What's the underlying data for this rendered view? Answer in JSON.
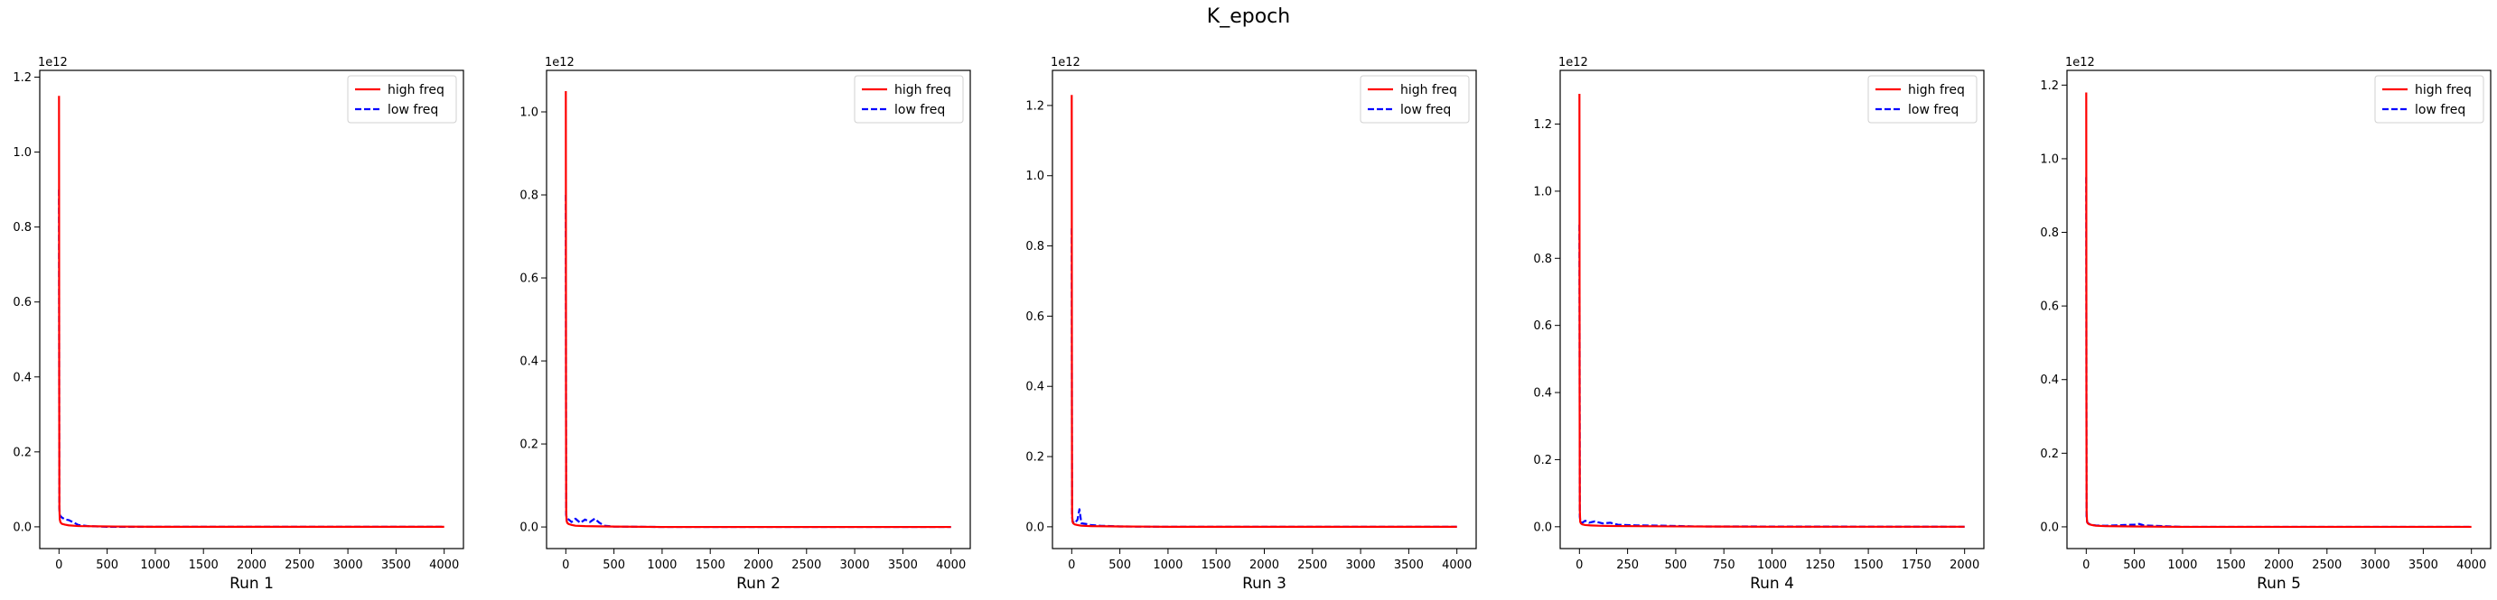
{
  "figure": {
    "title": "K_epoch"
  },
  "chart_data": [
    {
      "type": "line",
      "title": "",
      "xlabel": "Run 1",
      "ylabel": "",
      "xlim": [
        -200,
        4200
      ],
      "ylim": [
        -0.058,
        1.218
      ],
      "xticks": [
        0,
        500,
        1000,
        1500,
        2000,
        2500,
        3000,
        3500,
        4000
      ],
      "xtick_labels": [
        "0",
        "500",
        "1000",
        "1500",
        "2000",
        "2500",
        "3000",
        "3500",
        "4000"
      ],
      "yticks": [
        0.0,
        0.2,
        0.4,
        0.6,
        0.8,
        1.0,
        1.2
      ],
      "ytick_labels": [
        "0.0",
        "0.2",
        "0.4",
        "0.6",
        "0.8",
        "1.0",
        "1.2"
      ],
      "y_offset_label": "1e12",
      "legend": {
        "placement": "top-right",
        "entries": [
          "high freq",
          "low freq"
        ]
      },
      "grid": false,
      "series": [
        {
          "name": "high freq",
          "color": "#ff0000",
          "style": "solid",
          "x": [
            0,
            2,
            4,
            8,
            15,
            30,
            60,
            100,
            200,
            500,
            1000,
            2000,
            3000,
            4000
          ],
          "y": [
            1.15,
            0.4,
            0.05,
            0.02,
            0.012,
            0.008,
            0.006,
            0.004,
            0.002,
            0.001,
            0.0,
            0.0,
            0.0,
            0.0
          ]
        },
        {
          "name": "low freq",
          "color": "#0000ff",
          "style": "dashed",
          "x": [
            0,
            3,
            10,
            30,
            60,
            100,
            150,
            200,
            300,
            500,
            1000,
            4000
          ],
          "y": [
            0.9,
            0.05,
            0.03,
            0.025,
            0.02,
            0.018,
            0.012,
            0.005,
            0.002,
            0.0,
            0.0,
            0.0
          ]
        }
      ]
    },
    {
      "type": "line",
      "title": "",
      "xlabel": "Run 2",
      "ylabel": "",
      "xlim": [
        -200,
        4200
      ],
      "ylim": [
        -0.052,
        1.1
      ],
      "xticks": [
        0,
        500,
        1000,
        1500,
        2000,
        2500,
        3000,
        3500,
        4000
      ],
      "xtick_labels": [
        "0",
        "500",
        "1000",
        "1500",
        "2000",
        "2500",
        "3000",
        "3500",
        "4000"
      ],
      "yticks": [
        0.0,
        0.2,
        0.4,
        0.6,
        0.8,
        1.0
      ],
      "ytick_labels": [
        "0.0",
        "0.2",
        "0.4",
        "0.6",
        "0.8",
        "1.0"
      ],
      "y_offset_label": "1e12",
      "legend": {
        "placement": "top-right",
        "entries": [
          "high freq",
          "low freq"
        ]
      },
      "grid": false,
      "series": [
        {
          "name": "high freq",
          "color": "#ff0000",
          "style": "solid",
          "x": [
            0,
            2,
            4,
            8,
            15,
            30,
            60,
            100,
            200,
            500,
            1000,
            2000,
            3000,
            4000
          ],
          "y": [
            1.05,
            0.3,
            0.04,
            0.015,
            0.01,
            0.007,
            0.005,
            0.003,
            0.002,
            0.001,
            0.0,
            0.0,
            0.0,
            0.0
          ]
        },
        {
          "name": "low freq",
          "color": "#0000ff",
          "style": "dashed",
          "x": [
            0,
            3,
            10,
            30,
            60,
            100,
            150,
            200,
            250,
            300,
            350,
            400,
            500,
            1000,
            4000
          ],
          "y": [
            0.8,
            0.03,
            0.02,
            0.018,
            0.012,
            0.02,
            0.01,
            0.018,
            0.012,
            0.02,
            0.01,
            0.003,
            0.001,
            0.0,
            0.0
          ]
        }
      ]
    },
    {
      "type": "line",
      "title": "",
      "xlabel": "Run 3",
      "ylabel": "",
      "xlim": [
        -200,
        4200
      ],
      "ylim": [
        -0.062,
        1.3
      ],
      "xticks": [
        0,
        500,
        1000,
        1500,
        2000,
        2500,
        3000,
        3500,
        4000
      ],
      "xtick_labels": [
        "0",
        "500",
        "1000",
        "1500",
        "2000",
        "2500",
        "3000",
        "3500",
        "4000"
      ],
      "yticks": [
        0.0,
        0.2,
        0.4,
        0.6,
        0.8,
        1.0,
        1.2
      ],
      "ytick_labels": [
        "0.0",
        "0.2",
        "0.4",
        "0.6",
        "0.8",
        "1.0",
        "1.2"
      ],
      "y_offset_label": "1e12",
      "legend": {
        "placement": "top-right",
        "entries": [
          "high freq",
          "low freq"
        ]
      },
      "grid": false,
      "series": [
        {
          "name": "high freq",
          "color": "#ff0000",
          "style": "solid",
          "x": [
            0,
            2,
            4,
            8,
            15,
            30,
            60,
            100,
            200,
            500,
            1000,
            2000,
            3000,
            4000
          ],
          "y": [
            1.23,
            0.35,
            0.04,
            0.015,
            0.01,
            0.007,
            0.005,
            0.003,
            0.002,
            0.001,
            0.0,
            0.0,
            0.0,
            0.0
          ]
        },
        {
          "name": "low freq",
          "color": "#0000ff",
          "style": "dashed",
          "x": [
            0,
            3,
            10,
            30,
            60,
            80,
            100,
            150,
            200,
            300,
            500,
            1000,
            4000
          ],
          "y": [
            0.85,
            0.03,
            0.015,
            0.01,
            0.02,
            0.05,
            0.01,
            0.008,
            0.005,
            0.003,
            0.001,
            0.0,
            0.0
          ]
        }
      ]
    },
    {
      "type": "line",
      "title": "",
      "xlabel": "Run 4",
      "ylabel": "",
      "xlim": [
        -100,
        2100
      ],
      "ylim": [
        -0.065,
        1.36
      ],
      "xticks": [
        0,
        250,
        500,
        750,
        1000,
        1250,
        1500,
        1750,
        2000
      ],
      "xtick_labels": [
        "0",
        "250",
        "500",
        "750",
        "1000",
        "1250",
        "1500",
        "1750",
        "2000"
      ],
      "yticks": [
        0.0,
        0.2,
        0.4,
        0.6,
        0.8,
        1.0,
        1.2
      ],
      "ytick_labels": [
        "0.0",
        "0.2",
        "0.4",
        "0.6",
        "0.8",
        "1.0",
        "1.2"
      ],
      "y_offset_label": "1e12",
      "legend": {
        "placement": "top-right",
        "entries": [
          "high freq",
          "low freq"
        ]
      },
      "grid": false,
      "series": [
        {
          "name": "high freq",
          "color": "#ff0000",
          "style": "solid",
          "x": [
            0,
            1,
            2,
            4,
            8,
            15,
            30,
            60,
            100,
            200,
            500,
            1000,
            2000
          ],
          "y": [
            1.29,
            0.4,
            0.05,
            0.015,
            0.01,
            0.007,
            0.005,
            0.004,
            0.003,
            0.002,
            0.001,
            0.0,
            0.0
          ]
        },
        {
          "name": "low freq",
          "color": "#0000ff",
          "style": "dashed",
          "x": [
            0,
            2,
            5,
            15,
            30,
            50,
            80,
            120,
            160,
            200,
            300,
            450,
            600,
            2000
          ],
          "y": [
            0.9,
            0.03,
            0.015,
            0.012,
            0.018,
            0.012,
            0.016,
            0.01,
            0.012,
            0.006,
            0.004,
            0.003,
            0.001,
            0.0
          ]
        }
      ]
    },
    {
      "type": "line",
      "title": "",
      "xlabel": "Run 5",
      "ylabel": "",
      "xlim": [
        -200,
        4200
      ],
      "ylim": [
        -0.059,
        1.24
      ],
      "xticks": [
        0,
        500,
        1000,
        1500,
        2000,
        2500,
        3000,
        3500,
        4000
      ],
      "xtick_labels": [
        "0",
        "500",
        "1000",
        "1500",
        "2000",
        "2500",
        "3000",
        "3500",
        "4000"
      ],
      "yticks": [
        0.0,
        0.2,
        0.4,
        0.6,
        0.8,
        1.0,
        1.2
      ],
      "ytick_labels": [
        "0.0",
        "0.2",
        "0.4",
        "0.6",
        "0.8",
        "1.0",
        "1.2"
      ],
      "y_offset_label": "1e12",
      "legend": {
        "placement": "top-right",
        "entries": [
          "high freq",
          "low freq"
        ]
      },
      "grid": false,
      "series": [
        {
          "name": "high freq",
          "color": "#ff0000",
          "style": "solid",
          "x": [
            0,
            2,
            4,
            8,
            15,
            30,
            60,
            100,
            200,
            500,
            1000,
            2000,
            3000,
            4000
          ],
          "y": [
            1.18,
            0.35,
            0.04,
            0.015,
            0.01,
            0.007,
            0.005,
            0.003,
            0.002,
            0.001,
            0.0,
            0.0,
            0.0,
            0.0
          ]
        },
        {
          "name": "low freq",
          "color": "#0000ff",
          "style": "dashed",
          "x": [
            0,
            3,
            10,
            30,
            60,
            100,
            200,
            300,
            400,
            500,
            550,
            600,
            1000,
            4000
          ],
          "y": [
            0.95,
            0.03,
            0.012,
            0.008,
            0.005,
            0.004,
            0.003,
            0.004,
            0.005,
            0.006,
            0.008,
            0.004,
            0.0,
            0.0
          ]
        }
      ]
    }
  ]
}
